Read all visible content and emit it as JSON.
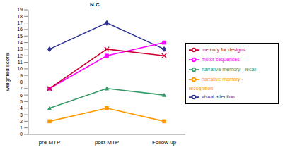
{
  "chart_data": {
    "type": "line",
    "title": "N.C.",
    "y_label": "weighted score",
    "categories": [
      "pre MTP",
      "post MTP",
      "Follow up"
    ],
    "series": [
      {
        "name": "visual attention",
        "color": "#2e3192",
        "marker": "diamond",
        "values": [
          13,
          17,
          13
        ]
      },
      {
        "name": "motor sequences",
        "color": "#ff00ff",
        "marker": "square",
        "values": [
          7,
          12,
          14
        ]
      },
      {
        "name": "narrative memory - recall",
        "color": "#339966",
        "marker": "triangle",
        "values": [
          4,
          7,
          6
        ]
      },
      {
        "name": "narrative memory - recognition",
        "color": "#ff9900",
        "marker": "square",
        "values": [
          2,
          4,
          2
        ]
      },
      {
        "name": "memory for designs",
        "color": "#cc0033",
        "marker": "x",
        "values": [
          7,
          13,
          12
        ]
      }
    ],
    "ylim": [
      0,
      19
    ],
    "yticks": [
      0,
      1,
      2,
      3,
      4,
      5,
      6,
      7,
      8,
      9,
      10,
      11,
      12,
      13,
      14,
      15,
      16,
      17,
      18,
      19
    ],
    "grid": false,
    "legend": "right"
  }
}
